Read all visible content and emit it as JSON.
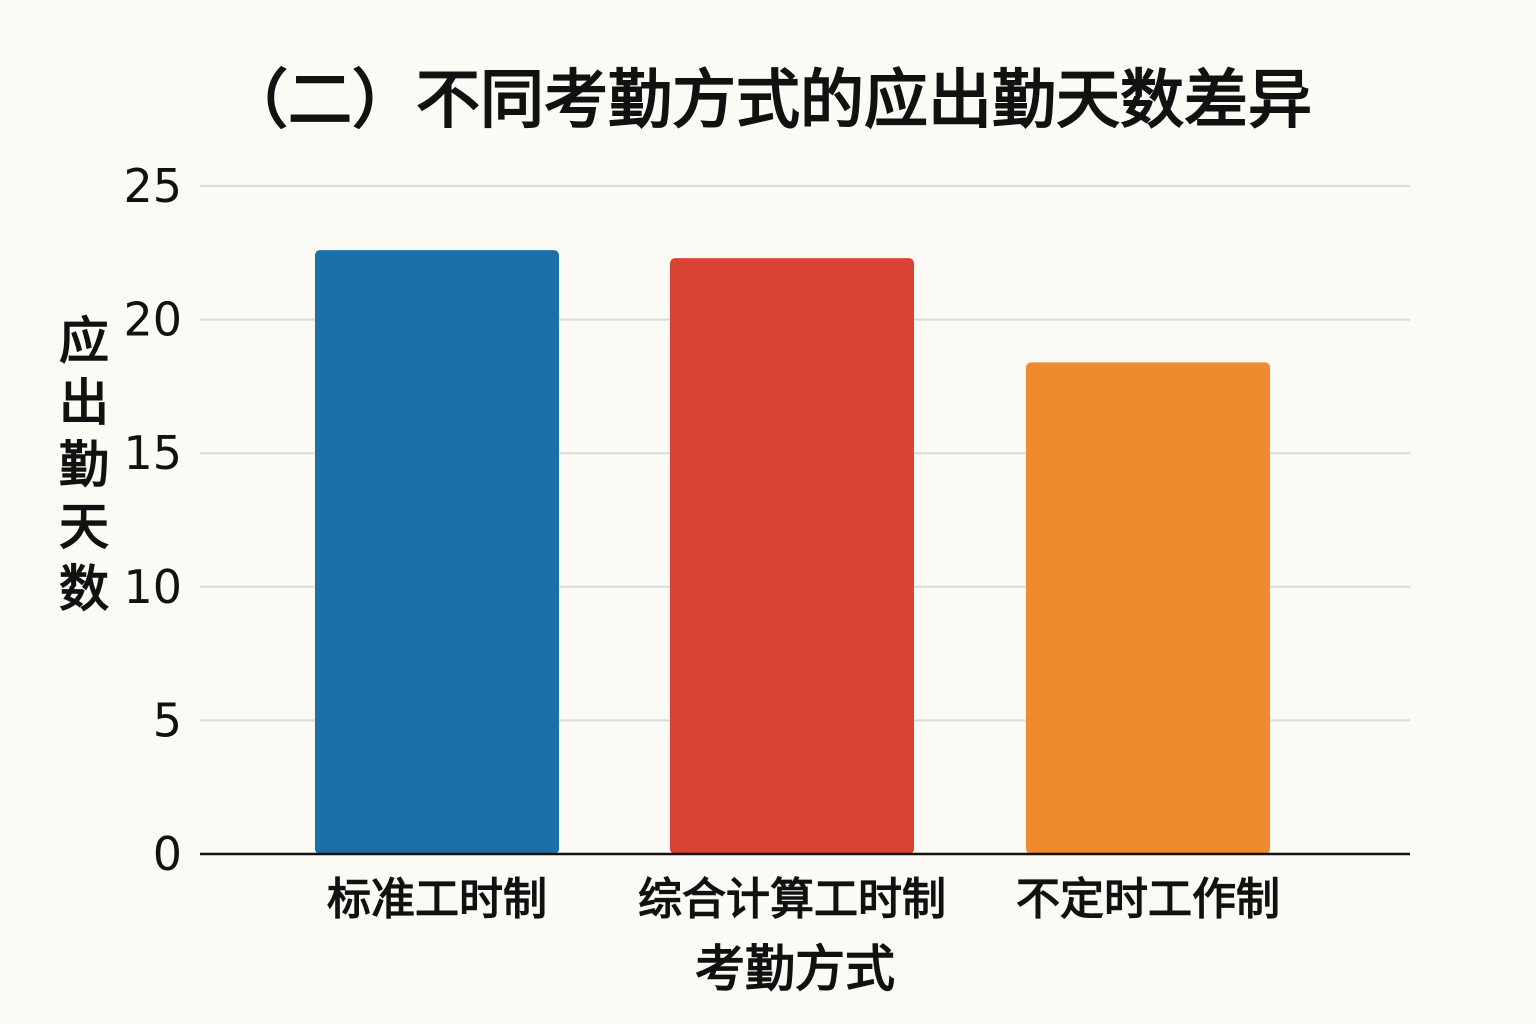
{
  "chart_data": {
    "type": "bar",
    "title": "（二）不同考勤方式的应出勤天数差异",
    "xlabel": "考勤方式",
    "ylabel": "应出勤天数",
    "categories": [
      "标准工时制",
      "综合计算工时制",
      "不定时工作制"
    ],
    "values": [
      22.6,
      22.3,
      18.4
    ],
    "colors": [
      "#1b70a8",
      "#d94432",
      "#ef8a2e"
    ],
    "ylim": [
      0,
      25
    ],
    "yticks": [
      "0",
      "5",
      "10",
      "15",
      "20",
      "25"
    ],
    "grid": true
  }
}
